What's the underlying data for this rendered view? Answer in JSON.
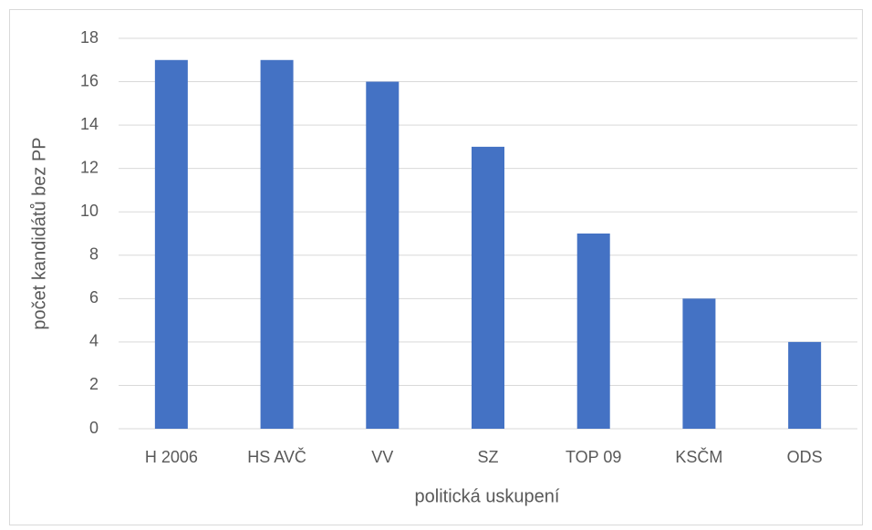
{
  "chart_data": {
    "type": "bar",
    "categories": [
      "H 2006",
      "HS AVČ",
      "VV",
      "SZ",
      "TOP 09",
      "KSČM",
      "ODS"
    ],
    "values": [
      17,
      17,
      16,
      13,
      9,
      6,
      4
    ],
    "color": "#4472c4",
    "xlabel": "politická uskupení",
    "ylabel": "počet kandidátů bez PP",
    "ylim": [
      0,
      18
    ],
    "yticks": [
      0,
      2,
      4,
      6,
      8,
      10,
      12,
      14,
      16,
      18
    ],
    "grid": true
  }
}
